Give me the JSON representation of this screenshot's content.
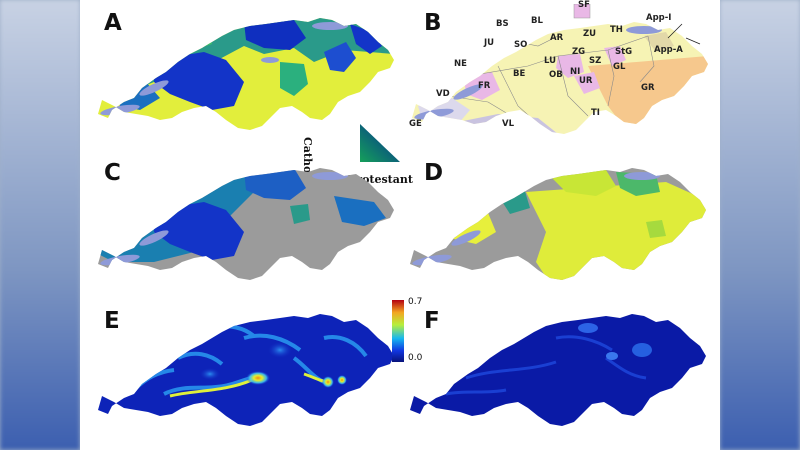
{
  "panels": {
    "a": "A",
    "b": "B",
    "c": "C",
    "d": "D",
    "e": "E",
    "f": "F"
  },
  "legend": {
    "catholic": "Catholic",
    "protestant": "Protestant"
  },
  "colorbar": {
    "max_label": "0.7",
    "min_label": "0.0",
    "min": 0.0,
    "max": 0.7
  },
  "cantons": [
    {
      "abbr": "SF"
    },
    {
      "abbr": "BS"
    },
    {
      "abbr": "BL"
    },
    {
      "abbr": "TH"
    },
    {
      "abbr": "App-I"
    },
    {
      "abbr": "JU"
    },
    {
      "abbr": "SO"
    },
    {
      "abbr": "AR"
    },
    {
      "abbr": "ZU"
    },
    {
      "abbr": "ZG"
    },
    {
      "abbr": "StG"
    },
    {
      "abbr": "App-A"
    },
    {
      "abbr": "NE"
    },
    {
      "abbr": "LU"
    },
    {
      "abbr": "SZ"
    },
    {
      "abbr": "GL"
    },
    {
      "abbr": "BE"
    },
    {
      "abbr": "FR"
    },
    {
      "abbr": "OB"
    },
    {
      "abbr": "NI"
    },
    {
      "abbr": "UR"
    },
    {
      "abbr": "VD"
    },
    {
      "abbr": "GR"
    },
    {
      "abbr": "TI"
    },
    {
      "abbr": "GE"
    },
    {
      "abbr": "VL"
    }
  ],
  "colors": {
    "catholic": "#e3ef3a",
    "protestant": "#0f2fbf",
    "mixed": "#1f9a86",
    "missing": "#9b9b9b",
    "lake": "#8e9ad8",
    "heat_low": "#0b1ea8",
    "heat_mid": "#1aa6f2",
    "heat_high": "#f2ee2a",
    "heat_max": "#c8001a"
  }
}
